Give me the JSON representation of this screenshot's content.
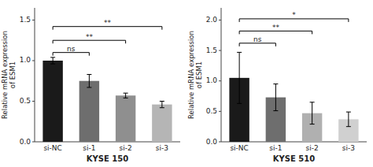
{
  "chart_data": [
    {
      "type": "bar",
      "xlabel": "KYSE 150",
      "ylabel": "Relative mRNA expression\nof ESM1",
      "categories": [
        "si-NC",
        "si-1",
        "si-2",
        "si-3"
      ],
      "values": [
        1.0,
        0.75,
        0.57,
        0.46
      ],
      "errors": [
        0.04,
        0.08,
        0.03,
        0.04
      ],
      "colors": [
        "#1a1a1a",
        "#6e6e6e",
        "#8f8f8f",
        "#b5b5b5"
      ],
      "ylim": [
        0,
        1.65
      ],
      "yticks": [
        {
          "value": 0,
          "label": "0.0"
        },
        0.5,
        {
          "value": 1,
          "label": "1.0"
        },
        1.5
      ],
      "annotations": [
        {
          "from": "si-NC",
          "to": "si-1",
          "y": 1.1,
          "label": "ns"
        },
        {
          "from": "si-NC",
          "to": "si-2",
          "y": 1.25,
          "label": "**"
        },
        {
          "from": "si-NC",
          "to": "si-3",
          "y": 1.42,
          "label": "**"
        }
      ]
    },
    {
      "type": "bar",
      "xlabel": "KYSE 510",
      "ylabel": "Relative mRNA expression\nof ESM1",
      "categories": [
        "si-NC",
        "si-1",
        "si-2",
        "si-3"
      ],
      "values": [
        1.05,
        0.73,
        0.47,
        0.37
      ],
      "errors": [
        0.42,
        0.22,
        0.18,
        0.12
      ],
      "colors": [
        "#1a1a1a",
        "#6e6e6e",
        "#b0b0b0",
        "#d0d0d0"
      ],
      "ylim": [
        0,
        2.2
      ],
      "yticks": [
        {
          "value": 0,
          "label": "0.0"
        },
        0.5,
        {
          "value": 1,
          "label": "1.0"
        },
        1.5,
        {
          "value": 2,
          "label": "2.0"
        }
      ],
      "annotations": [
        {
          "from": "si-NC",
          "to": "si-1",
          "y": 1.62,
          "label": "ns"
        },
        {
          "from": "si-NC",
          "to": "si-2",
          "y": 1.82,
          "label": "**"
        },
        {
          "from": "si-NC",
          "to": "si-3",
          "y": 2.02,
          "label": "*"
        }
      ]
    }
  ]
}
